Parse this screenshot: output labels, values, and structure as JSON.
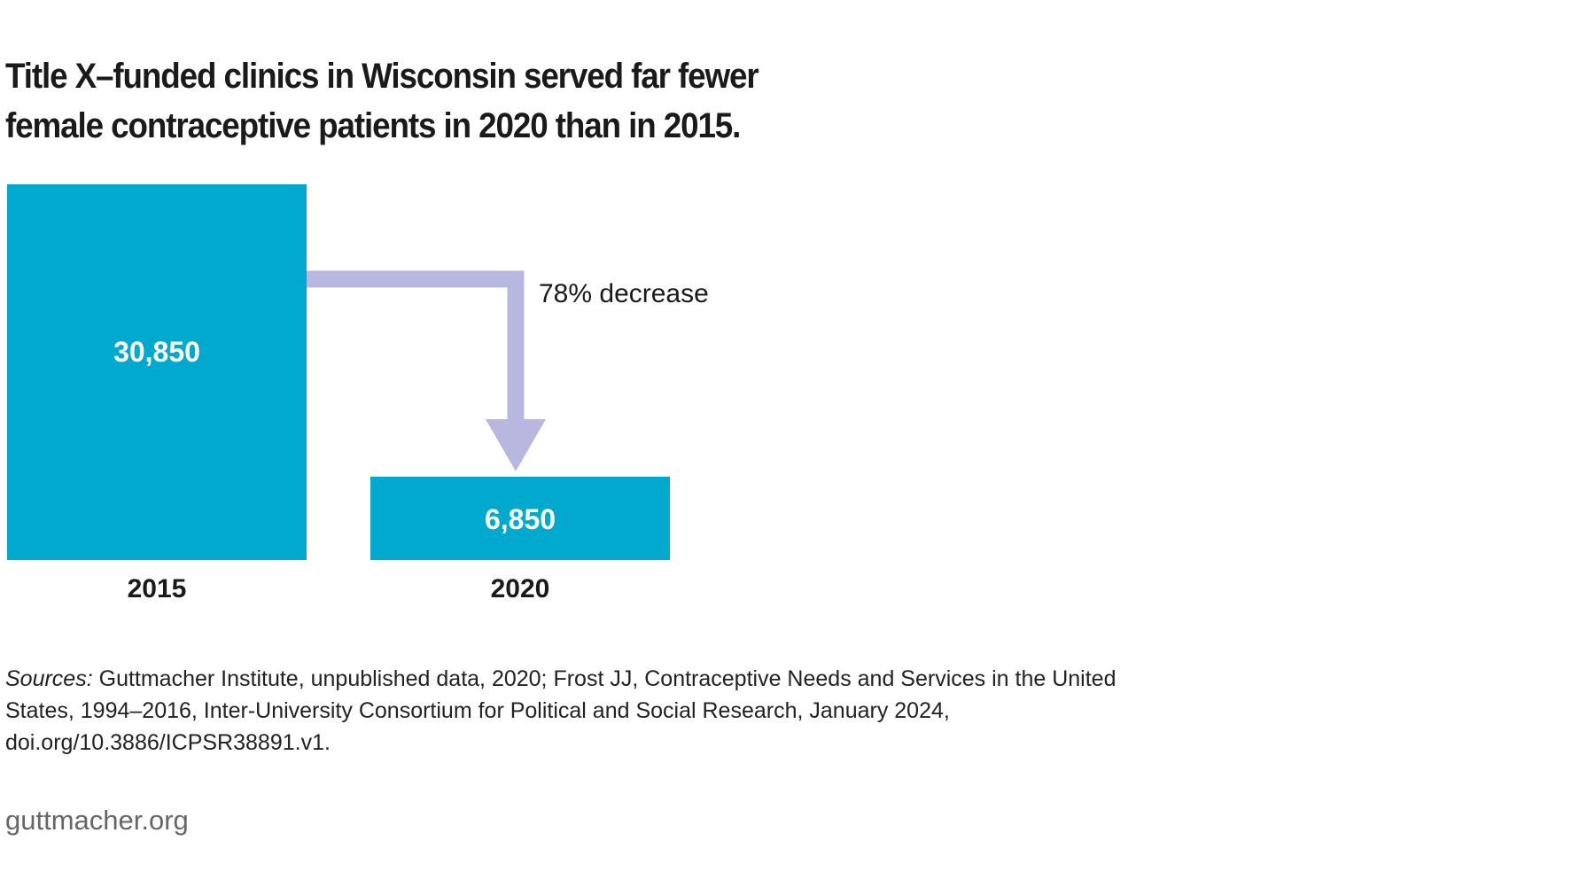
{
  "chart_data": {
    "type": "bar",
    "title_lines": [
      "Title X–funded clinics in Wisconsin served far fewer",
      "female contraceptive patients in 2020 than in 2015."
    ],
    "categories": [
      "2015",
      "2020"
    ],
    "values": [
      30850,
      6850
    ],
    "value_labels": [
      "30,850",
      "6,850"
    ],
    "annotation": "78% decrease",
    "colors": {
      "bar": "#00a9cd",
      "arrow": "#b7b7e0",
      "value_text": "#ffffff"
    }
  },
  "sources": {
    "label": "Sources:",
    "text": " Guttmacher Institute, unpublished data, 2020; Frost JJ, Contraceptive Needs and Services in the United States, 1994–2016, Inter-University Consortium for Political and Social Research, January 2024, doi.org/10.3886/ICPSR38891.v1."
  },
  "footer": "guttmacher.org"
}
